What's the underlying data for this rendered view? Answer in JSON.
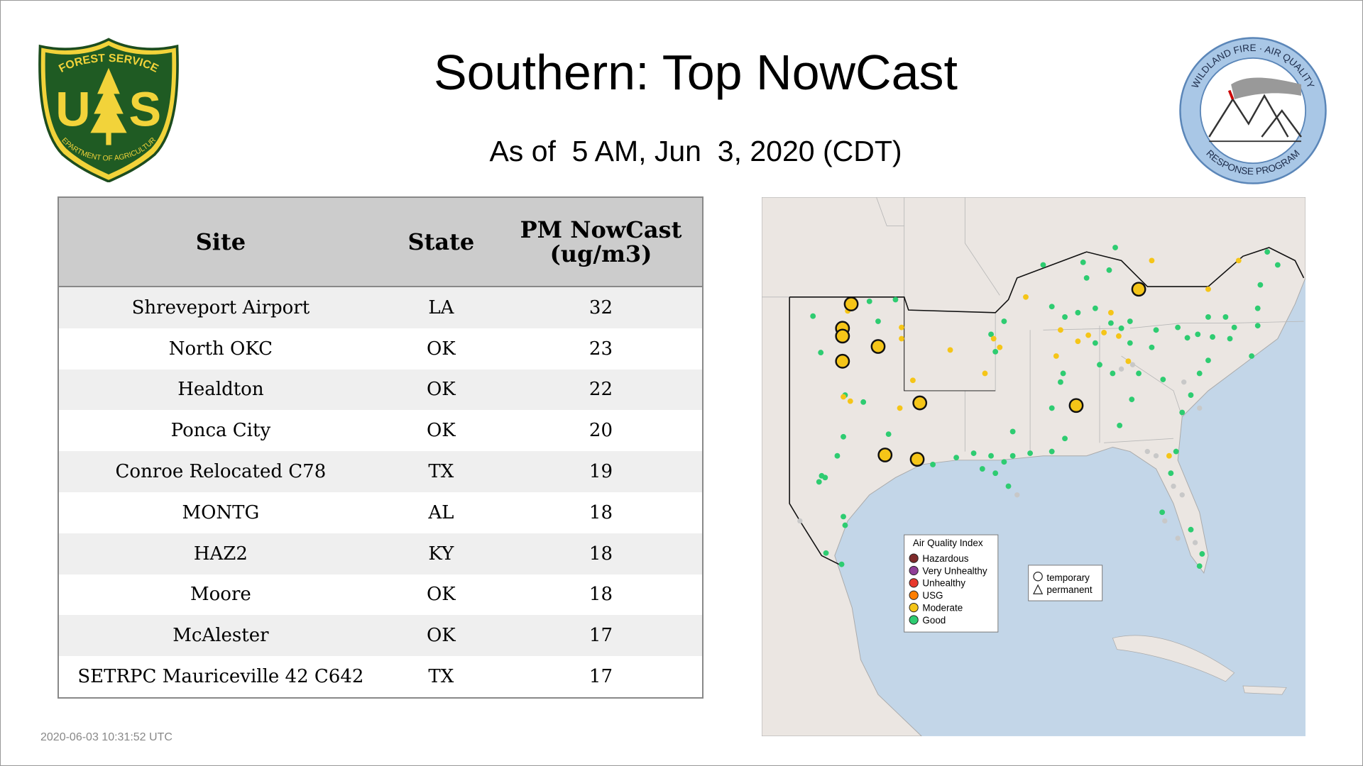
{
  "header": {
    "title": "Southern: Top NowCast",
    "subtitle": "As of  5 AM, Jun  3, 2020 (CDT)"
  },
  "logos": {
    "forest_service": {
      "top": "FOREST SERVICE",
      "left_letter": "U",
      "right_letter": "S",
      "bottom": "DEPARTMENT OF AGRICULTURE"
    },
    "wildland_fire": {
      "top": "WILDLAND FIRE · AIR QUALITY",
      "bottom": "RESPONSE PROGRAM"
    }
  },
  "table": {
    "columns": [
      "Site",
      "State",
      "PM NowCast (ug/m3)"
    ],
    "rows": [
      [
        "Shreveport Airport",
        "LA",
        32
      ],
      [
        "North OKC",
        "OK",
        23
      ],
      [
        "Healdton",
        "OK",
        22
      ],
      [
        "Ponca City",
        "OK",
        20
      ],
      [
        "Conroe Relocated C78",
        "TX",
        19
      ],
      [
        "MONTG",
        "AL",
        18
      ],
      [
        "HAZ2",
        "KY",
        18
      ],
      [
        "Moore",
        "OK",
        18
      ],
      [
        "McAlester",
        "OK",
        17
      ],
      [
        "SETRPC Mauriceville 42 C642",
        "TX",
        17
      ]
    ]
  },
  "map": {
    "legend": {
      "title": "Air Quality Index",
      "items": [
        {
          "label": "Hazardous",
          "color": "#7e2a2a"
        },
        {
          "label": "Very Unhealthy",
          "color": "#8f3f97"
        },
        {
          "label": "Unhealthy",
          "color": "#e8382c"
        },
        {
          "label": "USG",
          "color": "#ff7e00"
        },
        {
          "label": "Moderate",
          "color": "#f5c518"
        },
        {
          "label": "Good",
          "color": "#2ecc71"
        }
      ]
    },
    "shape_legend": [
      "temporary",
      "permanent"
    ]
  },
  "footer": {
    "timestamp": "2020-06-03 10:31:52 UTC"
  }
}
